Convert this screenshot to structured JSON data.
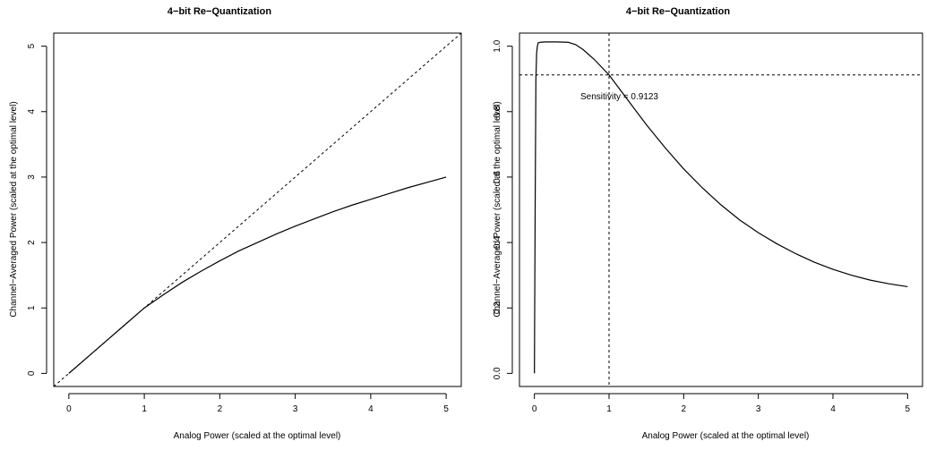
{
  "chart_data": [
    {
      "type": "line",
      "title": "4−bit Re−Quantization",
      "xlabel": "Analog Power (scaled at the optimal level)",
      "ylabel": "Channel−Averaged Power (scaled at the optimal level)",
      "xlim": [
        -0.2,
        5.2
      ],
      "ylim": [
        -0.2,
        5.2
      ],
      "x_ticks": [
        0,
        1,
        2,
        3,
        4,
        5
      ],
      "y_ticks": [
        0,
        1,
        2,
        3,
        4,
        5
      ],
      "series": [
        {
          "style": "solid",
          "x": [
            0,
            0.25,
            0.5,
            0.75,
            1.0,
            1.25,
            1.5,
            1.75,
            2.0,
            2.25,
            2.5,
            2.75,
            3.0,
            3.25,
            3.5,
            3.75,
            4.0,
            4.25,
            4.5,
            4.75,
            5.0
          ],
          "y": [
            0,
            0.25,
            0.5,
            0.75,
            1.0,
            1.2,
            1.39,
            1.56,
            1.72,
            1.87,
            2.0,
            2.13,
            2.25,
            2.36,
            2.47,
            2.57,
            2.66,
            2.75,
            2.84,
            2.92,
            3.0
          ]
        },
        {
          "style": "dashed",
          "x": [
            -0.2,
            5.2
          ],
          "y": [
            -0.2,
            5.2
          ]
        }
      ]
    },
    {
      "type": "line",
      "title": "4−bit Re−Quantization",
      "xlabel": "Analog Power (scaled at the optimal level)",
      "ylabel": "Channel−Averaged Power (scaled at the optimal level)",
      "xlim": [
        -0.2,
        5.2
      ],
      "ylim": [
        -0.04,
        1.04
      ],
      "x_ticks": [
        0,
        1,
        2,
        3,
        4,
        5
      ],
      "y_ticks": [
        0.0,
        0.2,
        0.4,
        0.6,
        0.8,
        1.0
      ],
      "y_tick_labels": [
        "0.0",
        "0.2",
        "0.4",
        "0.6",
        "0.8",
        "1.0"
      ],
      "series": [
        {
          "style": "solid",
          "x": [
            0.0,
            0.01,
            0.02,
            0.03,
            0.04,
            0.05,
            0.08,
            0.15,
            0.3,
            0.45,
            0.55,
            0.65,
            0.8,
            1.0,
            1.25,
            1.5,
            1.75,
            2.0,
            2.25,
            2.5,
            2.75,
            3.0,
            3.25,
            3.5,
            3.75,
            4.0,
            4.25,
            4.5,
            4.75,
            5.0
          ],
          "y": [
            0.0,
            0.5,
            0.9,
            0.98,
            1.0,
            1.01,
            1.012,
            1.013,
            1.013,
            1.012,
            1.005,
            0.99,
            0.96,
            0.9123,
            0.836,
            0.76,
            0.69,
            0.625,
            0.567,
            0.515,
            0.469,
            0.43,
            0.396,
            0.366,
            0.34,
            0.318,
            0.3,
            0.285,
            0.274,
            0.265
          ]
        }
      ],
      "reference_lines": {
        "vertical_x": 1,
        "horizontal_y": 0.9123
      },
      "annotation": {
        "text": "Sensitivity = 0.9123",
        "x": 1,
        "y": 0.9123
      }
    }
  ]
}
